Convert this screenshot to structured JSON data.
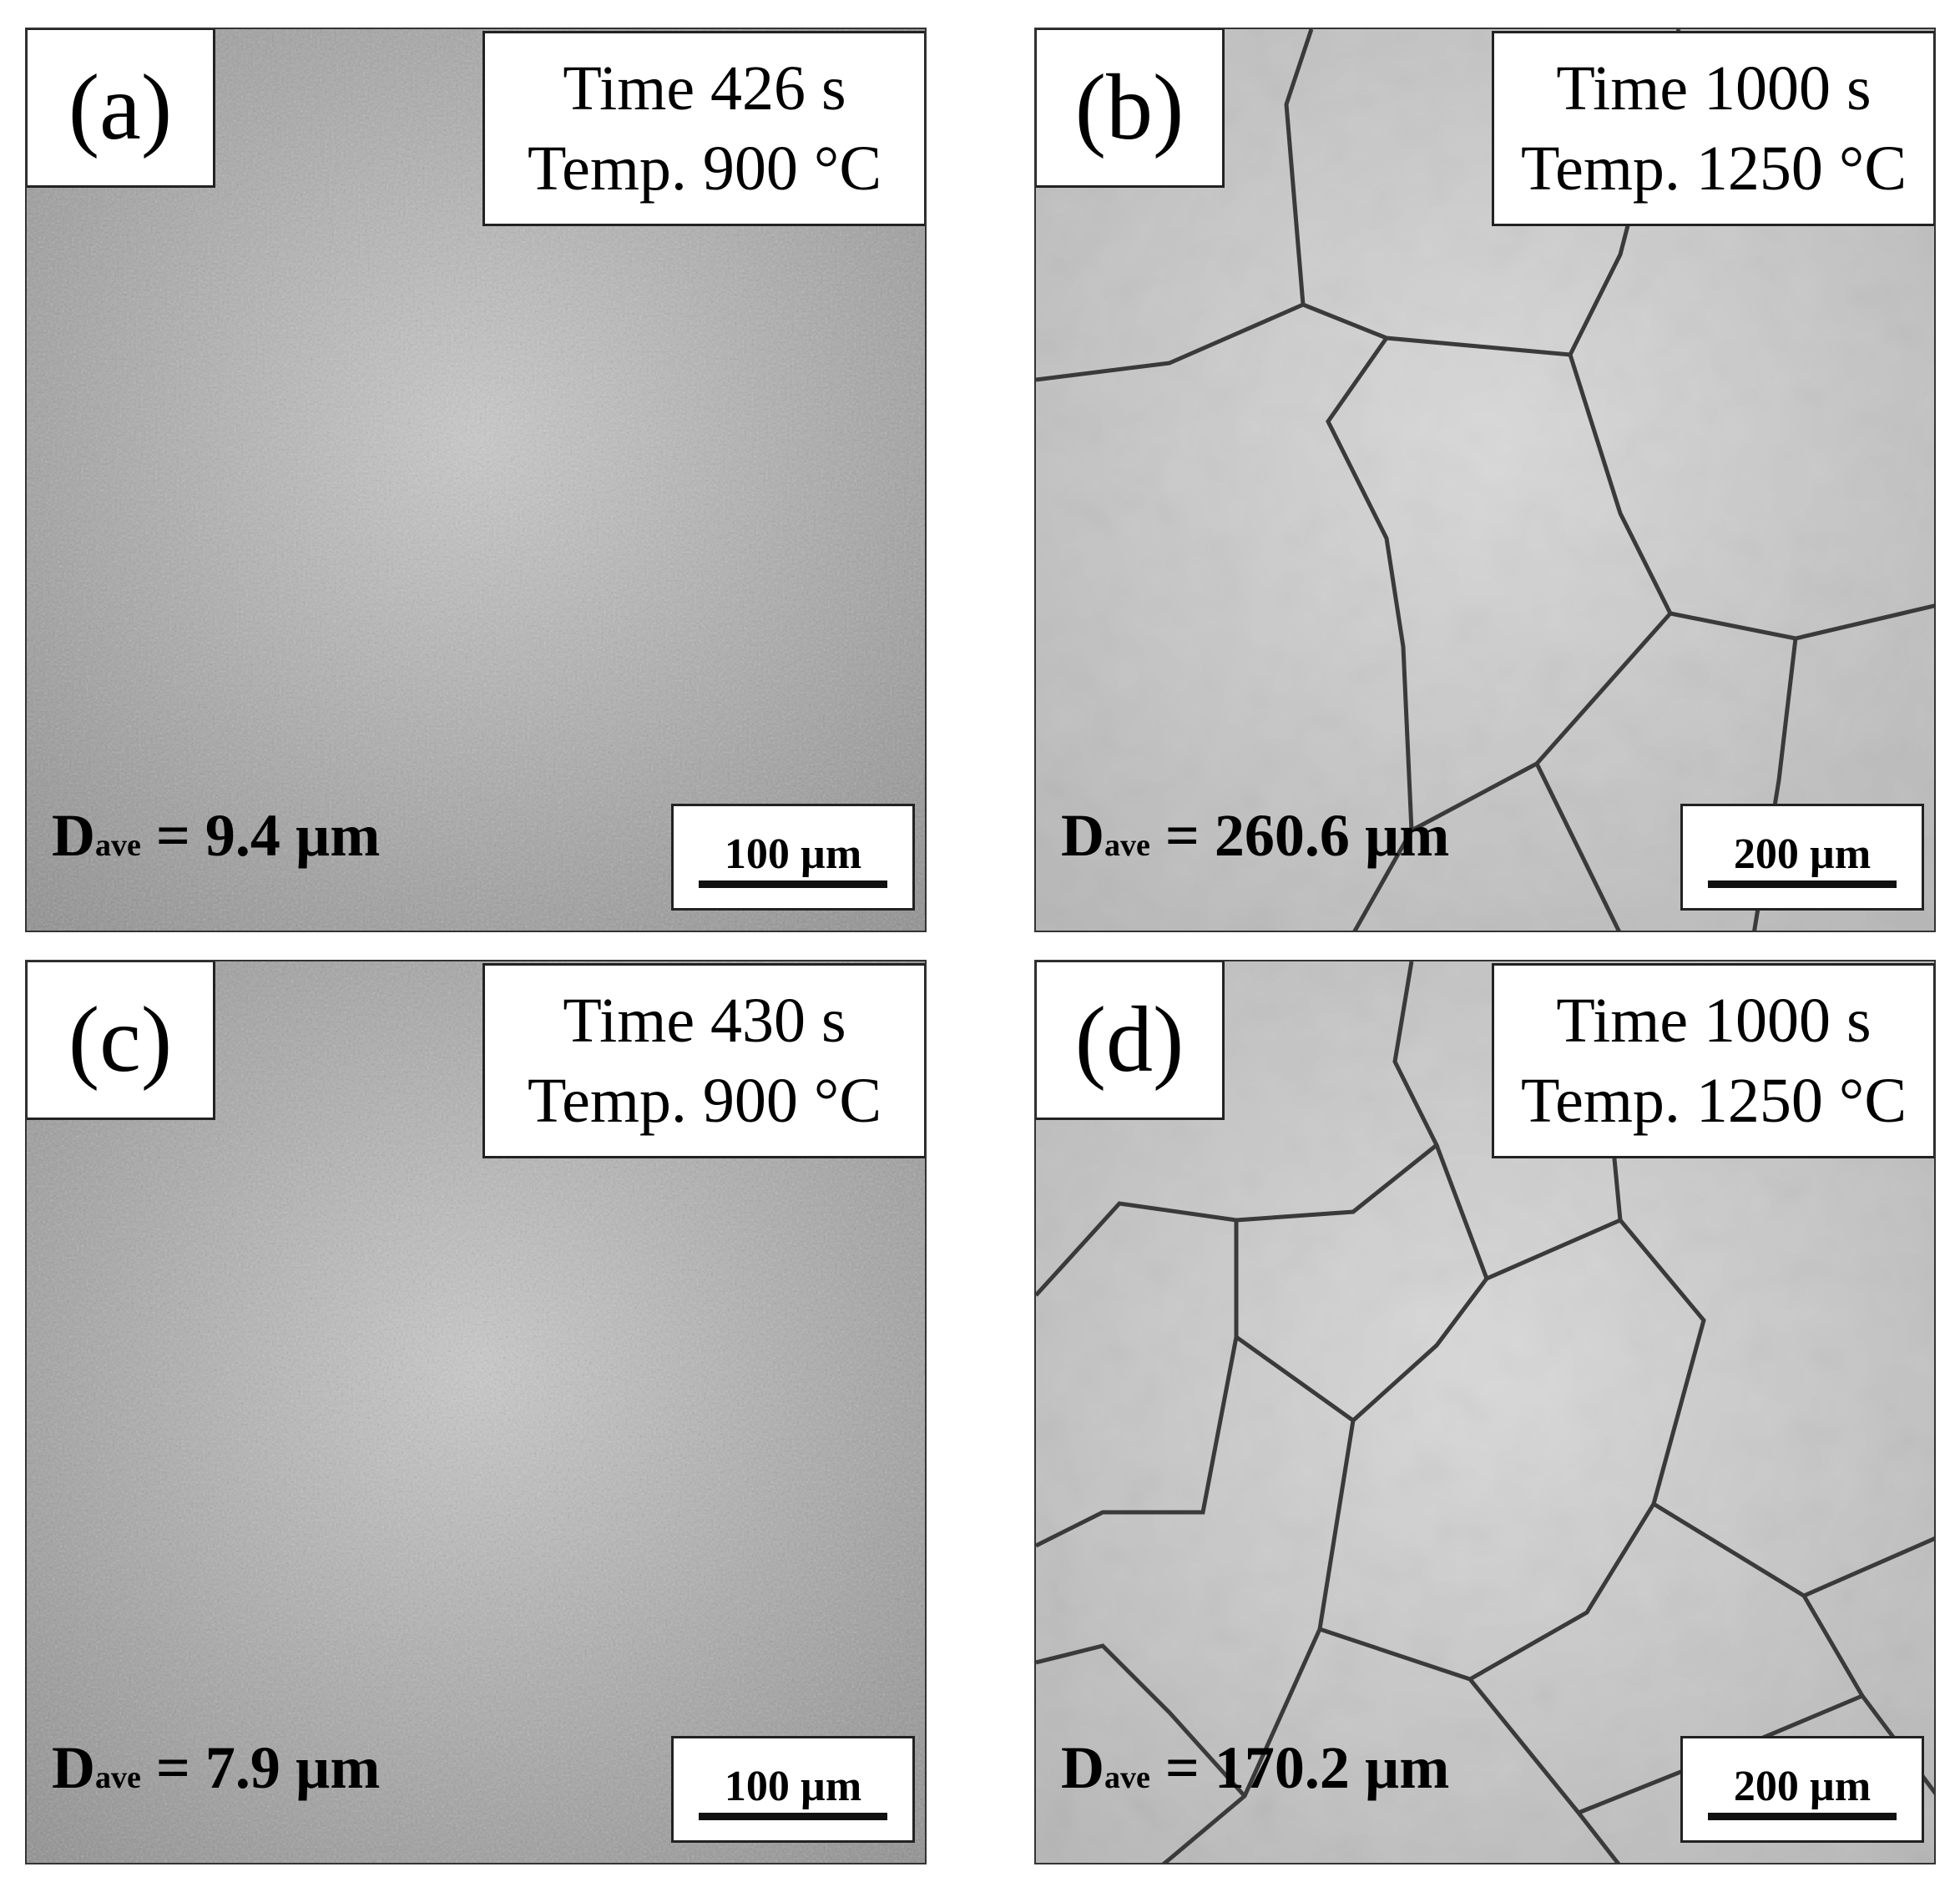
{
  "panels": [
    {
      "label": "(a)",
      "time": "Time 426 s",
      "temp": "Temp. 900 °C",
      "grain_size": {
        "symbol": "D",
        "subscript": "ave",
        "text": "= 9.4 µm"
      },
      "scale_bar": "100 µm"
    },
    {
      "label": "(b)",
      "time": "Time 1000 s",
      "temp": "Temp. 1250 °C",
      "grain_size": {
        "symbol": "D",
        "subscript": "ave",
        "text": "= 260.6 µm"
      },
      "scale_bar": "200 µm"
    },
    {
      "label": "(c)",
      "time": "Time 430 s",
      "temp": "Temp. 900 °C",
      "grain_size": {
        "symbol": "D",
        "subscript": "ave",
        "text": "= 7.9 µm"
      },
      "scale_bar": "100 µm"
    },
    {
      "label": "(d)",
      "time": "Time 1000 s",
      "temp": "Temp. 1250 °C",
      "grain_size": {
        "symbol": "D",
        "subscript": "ave",
        "text": "= 170.2 µm"
      },
      "scale_bar": "200 µm"
    }
  ]
}
